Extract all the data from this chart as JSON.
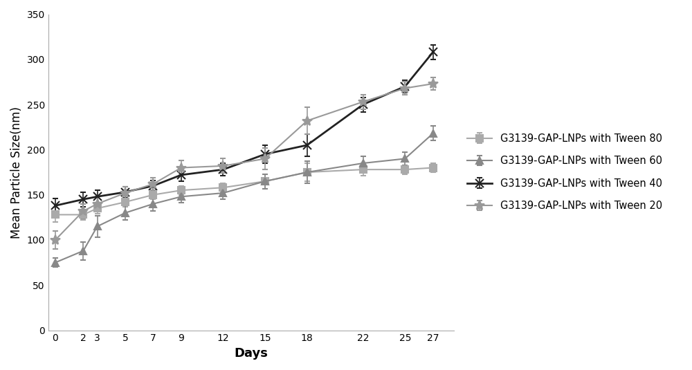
{
  "days": [
    0,
    2,
    3,
    5,
    7,
    9,
    12,
    15,
    18,
    22,
    25,
    27
  ],
  "tween80": {
    "y": [
      128,
      128,
      135,
      142,
      150,
      155,
      158,
      165,
      175,
      178,
      178,
      180
    ],
    "yerr": [
      8,
      6,
      6,
      5,
      5,
      5,
      5,
      8,
      10,
      7,
      5,
      5
    ],
    "color": "#aaaaaa",
    "marker": "s",
    "label": "G3139-GAP-LNPs with Tween 80",
    "linewidth": 1.5,
    "markersize": 7
  },
  "tween60": {
    "y": [
      75,
      88,
      115,
      130,
      140,
      148,
      152,
      165,
      175,
      185,
      190,
      218
    ],
    "yerr": [
      5,
      10,
      12,
      8,
      8,
      7,
      7,
      8,
      12,
      8,
      7,
      8
    ],
    "color": "#888888",
    "marker": "^",
    "label": "G3139-GAP-LNPs with Tween 60",
    "linewidth": 1.5,
    "markersize": 7
  },
  "tween40": {
    "y": [
      138,
      145,
      148,
      153,
      160,
      172,
      178,
      195,
      205,
      250,
      270,
      308
    ],
    "yerr": [
      8,
      8,
      7,
      6,
      6,
      7,
      7,
      10,
      12,
      8,
      7,
      8
    ],
    "color": "#222222",
    "marker": "x",
    "label": "G3139-GAP-LNPs with Tween 40",
    "linewidth": 2.0,
    "markersize": 9
  },
  "tween20": {
    "y": [
      100,
      132,
      140,
      152,
      162,
      180,
      182,
      190,
      232,
      253,
      268,
      273
    ],
    "yerr": [
      10,
      8,
      8,
      7,
      7,
      8,
      8,
      12,
      15,
      8,
      7,
      7
    ],
    "color": "#999999",
    "marker": "*",
    "label": "G3139-GAP-LNPs with Tween 20",
    "linewidth": 1.5,
    "markersize": 10
  },
  "xlabel": "Days",
  "ylabel": "Mean Particle Size(nm)",
  "xlim": [
    -0.5,
    28.5
  ],
  "ylim": [
    0,
    350
  ],
  "yticks": [
    0,
    50,
    100,
    150,
    200,
    250,
    300,
    350
  ],
  "xticks": [
    0,
    2,
    3,
    5,
    7,
    9,
    12,
    15,
    18,
    22,
    25,
    27
  ],
  "background_color": "#ffffff"
}
